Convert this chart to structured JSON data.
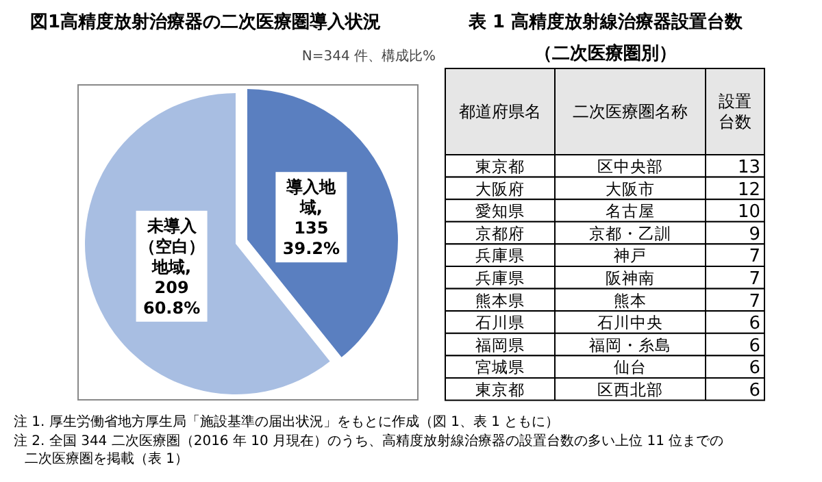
{
  "chart_data": [
    {
      "type": "pie",
      "title": "図1高精度放射治療器の二次医療圏導入状況",
      "subtitle": "N=344 件、構成比%",
      "categories": [
        "導入地域",
        "未導入（空白）地域"
      ],
      "values": [
        135,
        209
      ],
      "colors": [
        "#5a7fc0",
        "#a8bee2"
      ],
      "value_labels": [
        ", 135 39.2%",
        ", 209 60.8%"
      ],
      "annotations": [
        "注 1. 厚生労働省地方厚生局「施設基準の届出状況」をもとに作成（図 1、表 1 ともに）",
        "注 2. 全国 344 二次医療圏（2016 年 10 月現在）のうち、高精度放射線治療器の設置台数の多い上位 11 位までの二次医療圏を掲載（表 1）"
      ]
    },
    {
      "type": "other",
      "title": "表 1 高精度放射線治療器設置台数",
      "subtitle": "（二次医療圏別）",
      "xlabel": "都道府県名",
      "ylabel": "二次医療圏名称",
      "y2label": "設置台数",
      "categories": [
        "東京都",
        "大阪府",
        "愛知県",
        "京都府",
        "兵庫県",
        "兵庫県",
        "熊本県",
        "石川県",
        "福岡県",
        "宮城県",
        "東京都"
      ],
      "y2_categories": [
        "区中央部",
        "大阪市",
        "名古屋",
        "京都・乙訓",
        "神戸",
        "阪神南",
        "熊本",
        "石川中央",
        "福岡・糸島",
        "仙台",
        "区西北部"
      ],
      "values": [
        13,
        12,
        10,
        9,
        7,
        7,
        7,
        6,
        6,
        6,
        6
      ],
      "data_labels": true
    }
  ]
}
